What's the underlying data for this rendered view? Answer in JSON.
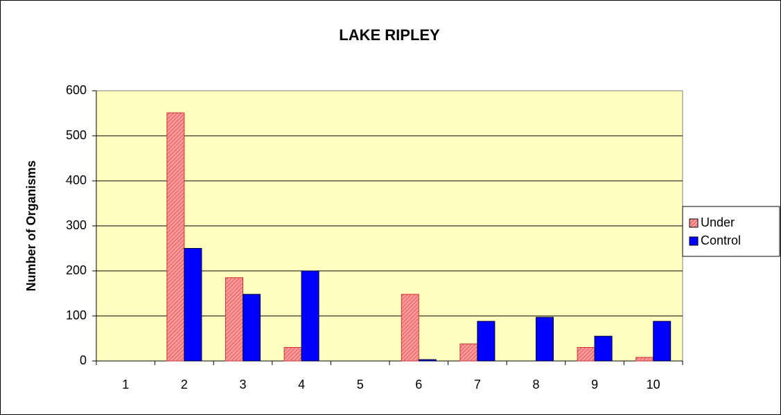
{
  "chart_data": {
    "type": "bar",
    "title": "LAKE RIPLEY",
    "y_label": "Number of Organisms",
    "categories": [
      "1",
      "2",
      "3",
      "4",
      "5",
      "6",
      "7",
      "8",
      "9",
      "10"
    ],
    "series": [
      {
        "name": "Under",
        "color": "#ff9999",
        "values": [
          0,
          551,
          185,
          30,
          0,
          148,
          38,
          0,
          30,
          8
        ]
      },
      {
        "name": "Control",
        "color": "#0000ff",
        "values": [
          0,
          250,
          148,
          200,
          0,
          3,
          88,
          97,
          55,
          88
        ]
      }
    ],
    "ylim": [
      0,
      600
    ],
    "yticks": [
      0,
      100,
      200,
      300,
      400,
      500,
      600
    ],
    "grid": true,
    "legend": "right"
  }
}
